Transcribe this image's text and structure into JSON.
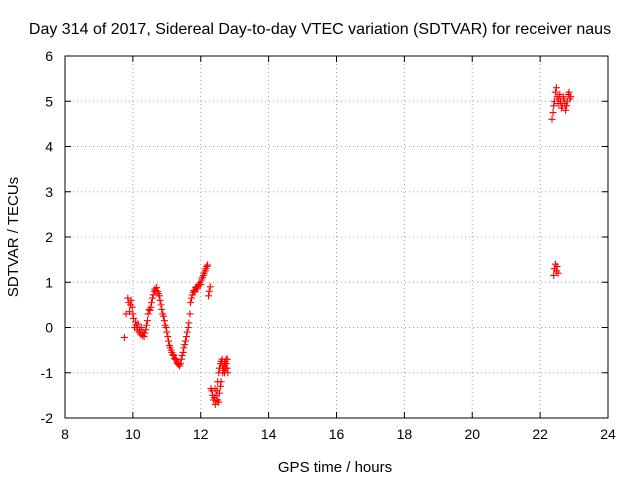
{
  "chart_data": {
    "type": "scatter",
    "title": "Day 314 of 2017, Sidereal Day-to-day VTEC variation (SDTVAR) for receiver naus",
    "xlabel": "GPS time / hours",
    "ylabel": "SDTVAR / TECUs",
    "xlim": [
      8,
      24
    ],
    "ylim": [
      -2,
      6
    ],
    "x_ticks": [
      "8",
      "10",
      "12",
      "14",
      "16",
      "18",
      "20",
      "22",
      "24"
    ],
    "y_ticks": [
      "-2",
      "-1",
      "0",
      "1",
      "2",
      "3",
      "4",
      "5",
      "6"
    ],
    "grid": true,
    "legend": "none",
    "marker": "plus",
    "color": "#ff0000",
    "series": [
      {
        "x": [
          9.75,
          9.8,
          9.85,
          9.88,
          9.9,
          9.93,
          9.95,
          9.98,
          10.0,
          10.02,
          10.05,
          10.08,
          10.1,
          10.13,
          10.15,
          10.18,
          10.2,
          10.23,
          10.25,
          10.28,
          10.3,
          10.33,
          10.35,
          10.38,
          10.4,
          10.43,
          10.45,
          10.48,
          10.5,
          10.53,
          10.55,
          10.58,
          10.6,
          10.63,
          10.65,
          10.68,
          10.7,
          10.73,
          10.75,
          10.78,
          10.8,
          10.83,
          10.85,
          10.88,
          10.9,
          10.93,
          10.95,
          10.98,
          11.0,
          11.03,
          11.05,
          11.08,
          11.1,
          11.13,
          11.15,
          11.18,
          11.2,
          11.23,
          11.25,
          11.28,
          11.3,
          11.33,
          11.35,
          11.38,
          11.4,
          11.43,
          11.45,
          11.48,
          11.5,
          11.53,
          11.55,
          11.58,
          11.6,
          11.63,
          11.65,
          11.68,
          11.7,
          11.73,
          11.75,
          11.78,
          11.8,
          11.83,
          11.85,
          11.88,
          11.9,
          11.93,
          11.95,
          11.98,
          12.0,
          12.03,
          12.05,
          12.08,
          12.1,
          12.13,
          12.15,
          12.18,
          12.2,
          12.23,
          12.25,
          12.28,
          12.3,
          12.33,
          12.35,
          12.38,
          12.4,
          12.43,
          12.45,
          12.48,
          12.5,
          12.53,
          12.55,
          12.58,
          12.6,
          12.63,
          12.65,
          12.68,
          12.7,
          12.73,
          12.75,
          12.78,
          12.42,
          12.45,
          12.5,
          12.53,
          12.55,
          12.58,
          12.6,
          12.65,
          12.68,
          12.7,
          12.72,
          12.75,
          12.78,
          12.8,
          22.35,
          22.38,
          22.4,
          22.42,
          22.45,
          22.48,
          22.5,
          22.53,
          22.55,
          22.58,
          22.6,
          22.63,
          22.65,
          22.68,
          22.7,
          22.73,
          22.75,
          22.78,
          22.8,
          22.83,
          22.85,
          22.88,
          22.9,
          22.4,
          22.42,
          22.45,
          22.48,
          22.5,
          22.53
        ],
        "y": [
          -0.22,
          0.3,
          0.65,
          0.55,
          0.35,
          0.5,
          0.6,
          0.45,
          0.3,
          0.2,
          0.0,
          0.12,
          0.05,
          -0.05,
          0.08,
          -0.1,
          -0.05,
          -0.15,
          0.0,
          -0.18,
          -0.1,
          -0.2,
          -0.12,
          -0.05,
          0.05,
          0.15,
          0.3,
          0.4,
          0.38,
          0.45,
          0.55,
          0.65,
          0.72,
          0.8,
          0.85,
          0.82,
          0.88,
          0.8,
          0.75,
          0.7,
          0.6,
          0.5,
          0.4,
          0.3,
          0.25,
          0.15,
          0.05,
          0.0,
          -0.1,
          -0.2,
          -0.3,
          -0.4,
          -0.45,
          -0.5,
          -0.55,
          -0.6,
          -0.62,
          -0.68,
          -0.7,
          -0.72,
          -0.78,
          -0.8,
          -0.82,
          -0.85,
          -0.8,
          -0.7,
          -0.62,
          -0.55,
          -0.45,
          -0.38,
          -0.3,
          -0.2,
          -0.1,
          0.0,
          0.1,
          0.3,
          0.55,
          0.65,
          0.72,
          0.78,
          0.82,
          0.8,
          0.88,
          0.9,
          0.85,
          0.92,
          0.95,
          1.0,
          0.95,
          1.05,
          1.1,
          1.15,
          1.2,
          1.25,
          1.3,
          1.35,
          1.38,
          0.7,
          0.8,
          0.9,
          -1.35,
          -1.4,
          -1.5,
          -1.6,
          -1.55,
          -1.7,
          -1.62,
          -1.4,
          -1.2,
          -1.0,
          -0.9,
          -0.8,
          -0.75,
          -0.7,
          -0.85,
          -0.95,
          -1.0,
          -0.9,
          -0.8,
          -0.7,
          -1.35,
          -1.5,
          -1.6,
          -1.65,
          -1.45,
          -1.3,
          -1.2,
          -1.0,
          -0.9,
          -0.8,
          -0.75,
          -0.7,
          -0.9,
          -1.0,
          4.6,
          4.75,
          4.9,
          5.0,
          5.2,
          5.3,
          5.1,
          4.95,
          5.05,
          5.15,
          5.0,
          4.85,
          4.9,
          5.1,
          5.05,
          4.95,
          4.8,
          4.9,
          5.0,
          5.15,
          5.2,
          5.05,
          5.1,
          1.15,
          1.3,
          1.4,
          1.25,
          1.35,
          1.2
        ]
      }
    ]
  }
}
